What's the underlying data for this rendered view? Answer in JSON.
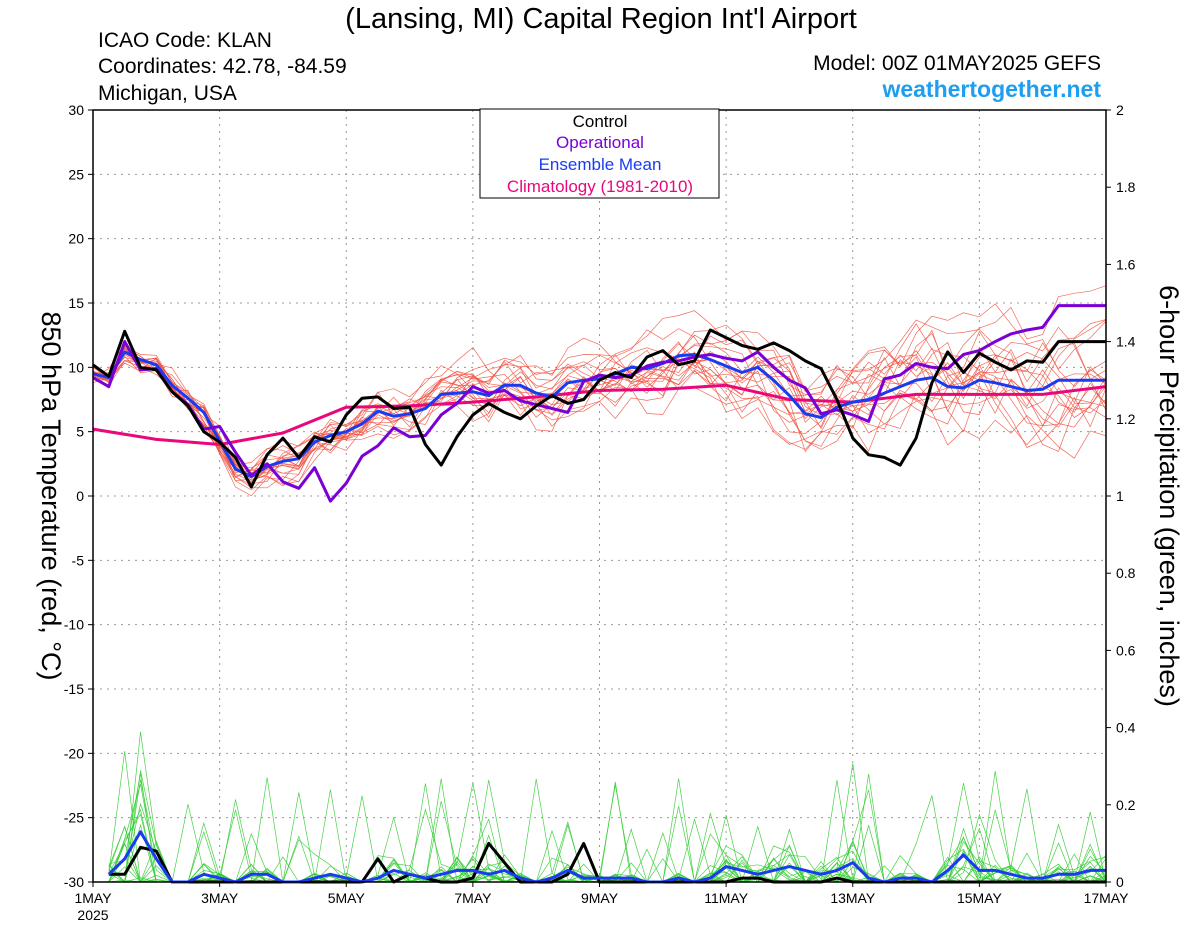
{
  "header": {
    "title": "(Lansing, MI) Capital Region Int'l Airport",
    "icao": "ICAO Code: KLAN",
    "coords": "Coordinates: 42.78, -84.59",
    "region": "Michigan, USA",
    "model": "Model: 00Z 01MAY2025 GEFS",
    "site": "weathertogether.net"
  },
  "legend": {
    "control": "Control",
    "operational": "Operational",
    "ensemble_mean": "Ensemble Mean",
    "climatology": "Climatology (1981-2010)"
  },
  "colors": {
    "control": "#000000",
    "operational": "#7a00d6",
    "ensemble_mean": "#1a3cf0",
    "climatology": "#e8087c",
    "members_temp": "#f05040",
    "members_precip": "#33cc33",
    "site": "#1e9ef0",
    "grid": "#999999"
  },
  "chart_data": {
    "type": "line",
    "title": "(Lansing, MI) Capital Region Int'l Airport",
    "ylabel": "850 hPa Temperature (red, °C)",
    "y2label": "6-hour Precipitation (green, inches)",
    "x_unit": "days since 1MAY2025 00Z",
    "xlim": [
      0,
      16
    ],
    "ylim": [
      -30,
      30
    ],
    "y2lim": [
      0,
      2
    ],
    "grid": true,
    "x_ticks": [
      {
        "x": 0,
        "label": "1MAY",
        "sub": "2025"
      },
      {
        "x": 2,
        "label": "3MAY",
        "sub": ""
      },
      {
        "x": 4,
        "label": "5MAY",
        "sub": ""
      },
      {
        "x": 6,
        "label": "7MAY",
        "sub": ""
      },
      {
        "x": 8,
        "label": "9MAY",
        "sub": ""
      },
      {
        "x": 10,
        "label": "11MAY",
        "sub": ""
      },
      {
        "x": 12,
        "label": "13MAY",
        "sub": ""
      },
      {
        "x": 14,
        "label": "15MAY",
        "sub": ""
      },
      {
        "x": 16,
        "label": "17MAY",
        "sub": ""
      }
    ],
    "y_ticks": [
      30,
      25,
      20,
      15,
      10,
      5,
      0,
      -5,
      -10,
      -15,
      -20,
      -25,
      -30
    ],
    "y2_ticks": [
      2,
      1.8,
      1.6,
      1.4,
      1.2,
      1,
      0.8,
      0.6,
      0.4,
      0.2,
      0
    ],
    "series": [
      {
        "name": "Climatology (1981-2010)",
        "axis": "temp",
        "x": [
          0,
          1,
          2,
          3,
          4,
          5,
          6,
          7,
          8,
          9,
          10,
          11,
          12,
          13,
          14,
          15,
          16
        ],
        "y": [
          5.2,
          4.4,
          4.0,
          4.9,
          6.9,
          7.0,
          7.3,
          7.7,
          8.2,
          8.3,
          8.6,
          7.5,
          7.3,
          7.9,
          7.9,
          7.9,
          8.5
        ]
      },
      {
        "name": "Control",
        "axis": "temp",
        "x": [
          0,
          0.25,
          0.5,
          0.75,
          1,
          1.25,
          1.5,
          1.75,
          2,
          2.25,
          2.5,
          2.75,
          3,
          3.25,
          3.5,
          3.75,
          4,
          4.25,
          4.5,
          4.75,
          5,
          5.25,
          5.5,
          5.75,
          6,
          6.25,
          6.5,
          6.75,
          7,
          7.25,
          7.5,
          7.75,
          8,
          8.25,
          8.5,
          8.75,
          9,
          9.25,
          9.5,
          9.75,
          10,
          10.25,
          10.5,
          10.75,
          11,
          11.25,
          11.5,
          11.75,
          12,
          12.25,
          12.5,
          12.75,
          13,
          13.25,
          13.5,
          13.75,
          14,
          14.25,
          14.5,
          14.75,
          15,
          15.25,
          15.5,
          15.75,
          16
        ],
        "y": [
          10.2,
          9.3,
          12.8,
          10.0,
          9.8,
          8.1,
          7.0,
          5.0,
          4.2,
          3.0,
          0.7,
          3.2,
          4.5,
          3.0,
          4.6,
          4.2,
          6.3,
          7.6,
          7.7,
          6.8,
          6.9,
          4.0,
          2.4,
          4.6,
          6.3,
          7.2,
          6.5,
          6.0,
          7.0,
          7.8,
          7.2,
          7.5,
          9.0,
          9.6,
          9.2,
          10.8,
          11.3,
          10.2,
          10.5,
          12.9,
          12.3,
          11.7,
          11.4,
          11.9,
          11.3,
          10.5,
          9.9,
          7.5,
          4.5,
          3.2,
          3.0,
          2.4,
          4.5,
          8.8,
          11.2,
          9.6,
          11.1,
          10.4,
          9.8,
          10.5,
          10.4,
          12.0,
          12.0,
          12.0,
          12.0
        ]
      },
      {
        "name": "Operational",
        "axis": "temp",
        "x": [
          0,
          0.25,
          0.5,
          0.75,
          1,
          1.25,
          1.5,
          1.75,
          2,
          2.25,
          2.5,
          2.75,
          3,
          3.25,
          3.5,
          3.75,
          4,
          4.25,
          4.5,
          4.75,
          5,
          5.25,
          5.5,
          5.75,
          6,
          6.25,
          6.5,
          6.75,
          7,
          7.25,
          7.5,
          7.75,
          8,
          8.25,
          8.5,
          8.75,
          9,
          9.25,
          9.5,
          9.75,
          10,
          10.25,
          10.5,
          10.75,
          11,
          11.25,
          11.5,
          11.75,
          12,
          12.25,
          12.5,
          12.75,
          13,
          13.25,
          13.5,
          13.75,
          14,
          14.25,
          14.5,
          14.75,
          15,
          15.25,
          15.5,
          15.75,
          16
        ],
        "y": [
          9.2,
          8.5,
          12.0,
          9.8,
          9.9,
          8.1,
          7.1,
          5.2,
          5.4,
          3.4,
          1.6,
          2.5,
          1.1,
          0.6,
          2.2,
          -0.4,
          1.0,
          3.1,
          3.9,
          5.3,
          4.6,
          4.7,
          6.3,
          7.2,
          8.5,
          8.0,
          8.2,
          7.4,
          7.1,
          6.8,
          6.5,
          8.9,
          9.4,
          9.2,
          9.4,
          10.1,
          10.4,
          10.5,
          10.8,
          11.0,
          10.7,
          10.5,
          11.2,
          10.0,
          9.0,
          8.4,
          6.4,
          6.7,
          6.3,
          5.8,
          9.1,
          9.4,
          10.3,
          10.0,
          9.9,
          11.0,
          11.3,
          12.0,
          12.6,
          12.9,
          13.1,
          14.8,
          14.8,
          14.8,
          14.8
        ]
      },
      {
        "name": "Ensemble Mean",
        "axis": "temp",
        "x": [
          0,
          0.25,
          0.5,
          0.75,
          1,
          1.25,
          1.5,
          1.75,
          2,
          2.25,
          2.5,
          2.75,
          3,
          3.25,
          3.5,
          3.75,
          4,
          4.25,
          4.5,
          4.75,
          5,
          5.25,
          5.5,
          5.75,
          6,
          6.25,
          6.5,
          6.75,
          7,
          7.25,
          7.5,
          7.75,
          8,
          8.25,
          8.5,
          8.75,
          9,
          9.25,
          9.5,
          9.75,
          10,
          10.25,
          10.5,
          10.75,
          11,
          11.25,
          11.5,
          11.75,
          12,
          12.25,
          12.5,
          12.75,
          13,
          13.25,
          13.5,
          13.75,
          14,
          14.25,
          14.5,
          14.75,
          15,
          15.25,
          15.5,
          15.75,
          16
        ],
        "y": [
          9.5,
          9.2,
          11.2,
          10.6,
          10.2,
          8.6,
          7.6,
          6.5,
          4.3,
          2.1,
          1.5,
          2.3,
          2.7,
          2.9,
          4.2,
          4.7,
          5.0,
          5.6,
          6.6,
          6.2,
          6.4,
          6.8,
          7.9,
          8.0,
          8.1,
          7.8,
          8.6,
          8.6,
          8.0,
          7.7,
          8.8,
          9.0,
          9.1,
          9.5,
          10.0,
          9.9,
          10.3,
          10.9,
          11.0,
          10.6,
          10.1,
          9.6,
          10.0,
          9.0,
          7.8,
          6.4,
          6.1,
          6.9,
          7.3,
          7.5,
          8.0,
          8.5,
          9.0,
          9.2,
          8.5,
          8.4,
          9.0,
          8.8,
          8.5,
          8.2,
          8.3,
          9.0,
          9.0,
          9.0,
          9.0
        ]
      },
      {
        "name": "Control",
        "axis": "precip",
        "x": [
          0.25,
          0.5,
          0.75,
          1,
          1.25,
          1.5,
          1.75,
          2,
          2.25,
          2.5,
          2.75,
          3,
          3.25,
          3.5,
          3.75,
          4,
          4.25,
          4.5,
          4.75,
          5,
          5.25,
          5.5,
          5.75,
          6,
          6.25,
          6.5,
          6.75,
          7,
          7.25,
          7.5,
          7.75,
          8,
          8.25,
          8.5,
          8.75,
          9,
          9.25,
          9.5,
          9.75,
          10,
          10.25,
          10.5,
          10.75,
          11,
          11.25,
          11.5,
          11.75,
          12,
          12.25,
          12.5,
          12.75,
          13,
          13.25,
          13.5,
          13.75,
          14,
          14.25,
          14.5,
          14.75,
          15,
          15.25,
          15.5,
          15.75,
          16
        ],
        "y": [
          0.02,
          0.02,
          0.09,
          0.08,
          0,
          0,
          0,
          0,
          0,
          0,
          0,
          0,
          0,
          0,
          0,
          0,
          0,
          0.06,
          0,
          0.02,
          0.01,
          0,
          0,
          0.01,
          0.1,
          0.05,
          0,
          0,
          0,
          0.02,
          0.1,
          0,
          0,
          0,
          0,
          0,
          0,
          0,
          0,
          0,
          0.01,
          0.01,
          0,
          0,
          0,
          0,
          0.01,
          0,
          0,
          0,
          0,
          0,
          0,
          0,
          0,
          0,
          0,
          0,
          0,
          0,
          0,
          0,
          0,
          0
        ]
      },
      {
        "name": "Ensemble Mean",
        "axis": "precip",
        "x": [
          0.25,
          0.5,
          0.75,
          1,
          1.25,
          1.5,
          1.75,
          2,
          2.25,
          2.5,
          2.75,
          3,
          3.25,
          3.5,
          3.75,
          4,
          4.25,
          4.5,
          4.75,
          5,
          5.25,
          5.5,
          5.75,
          6,
          6.25,
          6.5,
          6.75,
          7,
          7.25,
          7.5,
          7.75,
          8,
          8.25,
          8.5,
          8.75,
          9,
          9.25,
          9.5,
          9.75,
          10,
          10.25,
          10.5,
          10.75,
          11,
          11.25,
          11.5,
          11.75,
          12,
          12.25,
          12.5,
          12.75,
          13,
          13.25,
          13.5,
          13.75,
          14,
          14.25,
          14.5,
          14.75,
          15,
          15.25,
          15.5,
          15.75,
          16
        ],
        "y": [
          0.02,
          0.06,
          0.13,
          0.06,
          0,
          0,
          0.02,
          0.01,
          0,
          0.02,
          0.02,
          0,
          0,
          0.01,
          0.02,
          0.01,
          0,
          0.01,
          0.03,
          0.02,
          0.01,
          0.02,
          0.03,
          0.03,
          0.02,
          0.03,
          0.01,
          0,
          0.01,
          0.03,
          0.01,
          0.01,
          0.01,
          0.01,
          0,
          0,
          0.01,
          0,
          0.01,
          0.04,
          0.03,
          0.02,
          0.03,
          0.04,
          0.03,
          0.02,
          0.03,
          0.05,
          0.01,
          0,
          0.01,
          0.01,
          0,
          0.03,
          0.07,
          0.03,
          0.03,
          0.02,
          0.01,
          0.01,
          0.02,
          0.02,
          0.03,
          0.03
        ]
      }
    ]
  }
}
